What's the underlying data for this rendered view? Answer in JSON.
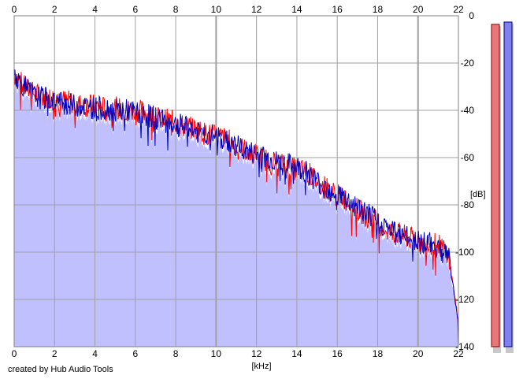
{
  "chart_data": {
    "type": "area",
    "xlabel": "[kHz]",
    "ylabel": "[dB]",
    "xlim": [
      0,
      22
    ],
    "ylim": [
      -140,
      0
    ],
    "x_ticks": [
      0,
      2,
      4,
      6,
      8,
      10,
      12,
      14,
      16,
      18,
      20,
      22
    ],
    "y_ticks": [
      0,
      -20,
      -40,
      -60,
      -80,
      -100,
      -120,
      -140
    ],
    "grid": true,
    "fill_color": "#c0c0ff",
    "series": [
      {
        "color": "#ff0000",
        "x": [
          0,
          0.2,
          0.5,
          1,
          1.5,
          2,
          2.5,
          3,
          3.5,
          4,
          4.5,
          5,
          5.5,
          6,
          6.5,
          7,
          7.5,
          8,
          8.5,
          9,
          9.5,
          10,
          10.5,
          11,
          11.5,
          12,
          12.5,
          13,
          13.5,
          14,
          14.5,
          15,
          15.5,
          16,
          16.5,
          17,
          17.5,
          18,
          18.5,
          19,
          19.5,
          20,
          20.5,
          21,
          21.5,
          21.8,
          22
        ],
        "values": [
          -25,
          -27,
          -30,
          -33,
          -34,
          -35,
          -36,
          -37,
          -38,
          -38,
          -39,
          -39,
          -40,
          -40,
          -41,
          -43,
          -44,
          -45,
          -47,
          -48,
          -50,
          -51,
          -52,
          -55,
          -57,
          -59,
          -61,
          -62,
          -64,
          -65,
          -66,
          -70,
          -73,
          -76,
          -78,
          -82,
          -85,
          -87,
          -91,
          -92,
          -94,
          -95,
          -96,
          -97,
          -100,
          -118,
          -130
        ]
      },
      {
        "color": "#0000c0",
        "x": [
          0,
          0.2,
          0.5,
          1,
          1.5,
          2,
          2.5,
          3,
          3.5,
          4,
          4.5,
          5,
          5.5,
          6,
          6.5,
          7,
          7.5,
          8,
          8.5,
          9,
          9.5,
          10,
          10.5,
          11,
          11.5,
          12,
          12.5,
          13,
          13.5,
          14,
          14.5,
          15,
          15.5,
          16,
          16.5,
          17,
          17.5,
          18,
          18.5,
          19,
          19.5,
          20,
          20.5,
          21,
          21.5,
          21.8,
          22
        ],
        "values": [
          -24,
          -27,
          -30,
          -34,
          -35,
          -36,
          -37,
          -38,
          -38,
          -39,
          -39,
          -40,
          -40,
          -41,
          -42,
          -43,
          -45,
          -46,
          -47,
          -49,
          -50,
          -51,
          -53,
          -55,
          -57,
          -59,
          -60,
          -62,
          -63,
          -64,
          -66,
          -70,
          -73,
          -75,
          -78,
          -81,
          -84,
          -87,
          -90,
          -92,
          -94,
          -95,
          -96,
          -98,
          -101,
          -118,
          -132
        ]
      }
    ]
  },
  "meters": [
    {
      "level": 0.974,
      "fill": "#e87878",
      "border": "#880000",
      "shadow": "#c8c8c8"
    },
    {
      "level": 0.981,
      "fill": "#8080ee",
      "border": "#000088",
      "shadow": "#c8c8c8"
    }
  ],
  "credit": "created by Hub Audio Tools"
}
